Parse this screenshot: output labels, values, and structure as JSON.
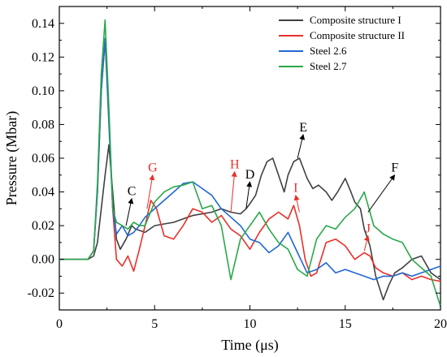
{
  "chart_data": {
    "type": "line",
    "xlabel": "Time (μs)",
    "ylabel": "Pressure (Mbar)",
    "xlim": [
      0,
      20
    ],
    "ylim": [
      -0.03,
      0.15
    ],
    "xticks": [
      0,
      5,
      10,
      15,
      20
    ],
    "yticks": [
      -0.02,
      0.0,
      0.02,
      0.04,
      0.06,
      0.08,
      0.1,
      0.12,
      0.14
    ],
    "xtick_labels": [
      "0",
      "5",
      "10",
      "15",
      "20"
    ],
    "ytick_labels": [
      "-0.02",
      "0.00",
      "0.02",
      "0.04",
      "0.06",
      "0.08",
      "0.10",
      "0.12",
      "0.14"
    ],
    "grid": false,
    "legend_position": "top-right",
    "series": [
      {
        "name": "Composite structure I",
        "color": "#404040",
        "x": [
          0,
          1.5,
          1.8,
          2.0,
          2.2,
          2.4,
          2.6,
          2.8,
          3.0,
          3.2,
          3.5,
          3.8,
          4.0,
          4.5,
          5.0,
          5.5,
          6.0,
          6.5,
          7.0,
          7.5,
          8.0,
          8.5,
          9.0,
          9.5,
          9.8,
          10.0,
          10.3,
          10.6,
          10.9,
          11.2,
          11.5,
          11.8,
          12.0,
          12.3,
          12.6,
          13.0,
          13.3,
          13.6,
          14.0,
          14.3,
          14.6,
          15.0,
          15.3,
          15.5,
          15.8,
          16.0,
          16.3,
          16.6,
          17.0,
          17.3,
          17.6,
          18.0,
          18.5,
          19.0,
          19.5,
          20.0
        ],
        "y": [
          0.0,
          0.0,
          0.002,
          0.01,
          0.03,
          0.05,
          0.068,
          0.04,
          0.012,
          0.006,
          0.012,
          0.02,
          0.018,
          0.016,
          0.02,
          0.021,
          0.022,
          0.024,
          0.026,
          0.027,
          0.028,
          0.03,
          0.028,
          0.027,
          0.03,
          0.033,
          0.038,
          0.05,
          0.058,
          0.06,
          0.05,
          0.04,
          0.05,
          0.058,
          0.06,
          0.048,
          0.042,
          0.044,
          0.04,
          0.035,
          0.04,
          0.048,
          0.04,
          0.034,
          0.03,
          0.018,
          0.008,
          -0.01,
          -0.024,
          -0.015,
          -0.008,
          -0.005,
          0.0,
          0.002,
          -0.008,
          -0.012
        ]
      },
      {
        "name": "Composite structure II",
        "color": "#e8302a",
        "x": [
          0,
          1.5,
          1.8,
          2.0,
          2.2,
          2.4,
          2.6,
          2.8,
          3.0,
          3.3,
          3.6,
          3.9,
          4.2,
          4.5,
          4.8,
          5.1,
          5.5,
          6.0,
          6.5,
          7.0,
          7.5,
          8.0,
          8.5,
          9.0,
          9.5,
          10.0,
          10.5,
          11.0,
          11.5,
          12.0,
          12.3,
          12.6,
          12.9,
          13.2,
          13.5,
          14.0,
          14.5,
          15.0,
          15.5,
          16.0,
          16.3,
          16.6,
          17.0,
          17.5,
          18.0,
          18.5,
          19.0,
          19.5,
          20.0
        ],
        "y": [
          0.0,
          0.0,
          0.005,
          0.04,
          0.1,
          0.13,
          0.085,
          0.03,
          0.0,
          -0.004,
          0.002,
          -0.007,
          0.006,
          0.02,
          0.035,
          0.03,
          0.014,
          0.012,
          0.02,
          0.03,
          0.028,
          0.022,
          0.026,
          0.018,
          0.014,
          0.006,
          0.016,
          0.024,
          0.028,
          0.024,
          0.032,
          0.02,
          0.0,
          -0.01,
          -0.008,
          0.01,
          0.012,
          0.008,
          0.0,
          0.004,
          0.002,
          -0.005,
          -0.008,
          -0.01,
          -0.008,
          -0.012,
          -0.01,
          -0.012,
          -0.013
        ]
      },
      {
        "name": "Steel 2.6",
        "color": "#1f68d6",
        "x": [
          0,
          1.5,
          1.8,
          2.0,
          2.2,
          2.4,
          2.6,
          2.8,
          3.0,
          3.3,
          3.6,
          3.9,
          4.2,
          4.5,
          5.0,
          5.5,
          6.0,
          6.5,
          7.0,
          7.5,
          8.0,
          8.5,
          9.0,
          9.5,
          10.0,
          10.5,
          11.0,
          11.5,
          12.0,
          12.5,
          13.0,
          13.5,
          14.0,
          14.5,
          15.0,
          15.5,
          16.0,
          16.5,
          17.0,
          17.5,
          18.0,
          18.5,
          19.0,
          19.5,
          20.0
        ],
        "y": [
          0.0,
          0.0,
          0.005,
          0.04,
          0.1,
          0.131,
          0.08,
          0.03,
          0.015,
          0.02,
          0.014,
          0.016,
          0.02,
          0.025,
          0.03,
          0.035,
          0.04,
          0.045,
          0.046,
          0.042,
          0.038,
          0.03,
          0.025,
          0.02,
          0.012,
          0.01,
          0.004,
          0.008,
          0.016,
          0.004,
          -0.008,
          -0.006,
          -0.002,
          -0.008,
          -0.006,
          -0.008,
          -0.01,
          -0.012,
          -0.01,
          -0.01,
          -0.008,
          -0.01,
          -0.008,
          -0.006,
          -0.004
        ]
      },
      {
        "name": "Steel 2.7",
        "color": "#2aa84a",
        "x": [
          0,
          1.5,
          1.8,
          2.0,
          2.2,
          2.4,
          2.6,
          2.8,
          3.0,
          3.3,
          3.6,
          3.9,
          4.2,
          4.5,
          5.0,
          5.5,
          6.0,
          6.5,
          7.0,
          7.5,
          8.0,
          8.5,
          9.0,
          9.5,
          10.0,
          10.5,
          11.0,
          11.5,
          12.0,
          12.5,
          13.0,
          13.5,
          14.0,
          14.5,
          15.0,
          15.5,
          16.0,
          16.5,
          17.0,
          17.5,
          18.0,
          18.5,
          19.0,
          19.5,
          20.0
        ],
        "y": [
          0.0,
          0.0,
          0.005,
          0.045,
          0.11,
          0.142,
          0.09,
          0.03,
          0.022,
          0.02,
          0.018,
          0.022,
          0.02,
          0.02,
          0.034,
          0.04,
          0.043,
          0.044,
          0.046,
          0.03,
          0.032,
          0.02,
          -0.012,
          0.012,
          0.02,
          0.028,
          0.018,
          0.01,
          0.006,
          -0.006,
          -0.01,
          0.012,
          0.02,
          0.018,
          0.025,
          0.03,
          0.04,
          0.02,
          0.015,
          0.012,
          0.01,
          0.0,
          -0.005,
          -0.01,
          -0.028
        ]
      }
    ],
    "annotations": [
      {
        "label": "C",
        "color": "#000000",
        "x": 3.8,
        "y": 0.038,
        "point": [
          3.5,
          0.02
        ]
      },
      {
        "label": "G",
        "color": "#e8302a",
        "x": 4.9,
        "y": 0.052,
        "point": [
          4.6,
          0.03
        ]
      },
      {
        "label": "H",
        "color": "#e8302a",
        "x": 9.2,
        "y": 0.054,
        "point": [
          9.0,
          0.028
        ]
      },
      {
        "label": "D",
        "color": "#000000",
        "x": 10.0,
        "y": 0.048,
        "point": [
          9.8,
          0.03
        ]
      },
      {
        "label": "E",
        "color": "#000000",
        "x": 12.8,
        "y": 0.076,
        "point": [
          12.5,
          0.06
        ]
      },
      {
        "label": "I",
        "color": "#e8302a",
        "x": 12.4,
        "y": 0.04,
        "point": [
          12.6,
          0.028
        ]
      },
      {
        "label": "J",
        "color": "#e8302a",
        "x": 16.2,
        "y": 0.016,
        "point": [
          16.0,
          0.005
        ]
      },
      {
        "label": "F",
        "color": "#000000",
        "x": 17.6,
        "y": 0.052,
        "point": [
          16.2,
          0.028
        ]
      }
    ]
  }
}
